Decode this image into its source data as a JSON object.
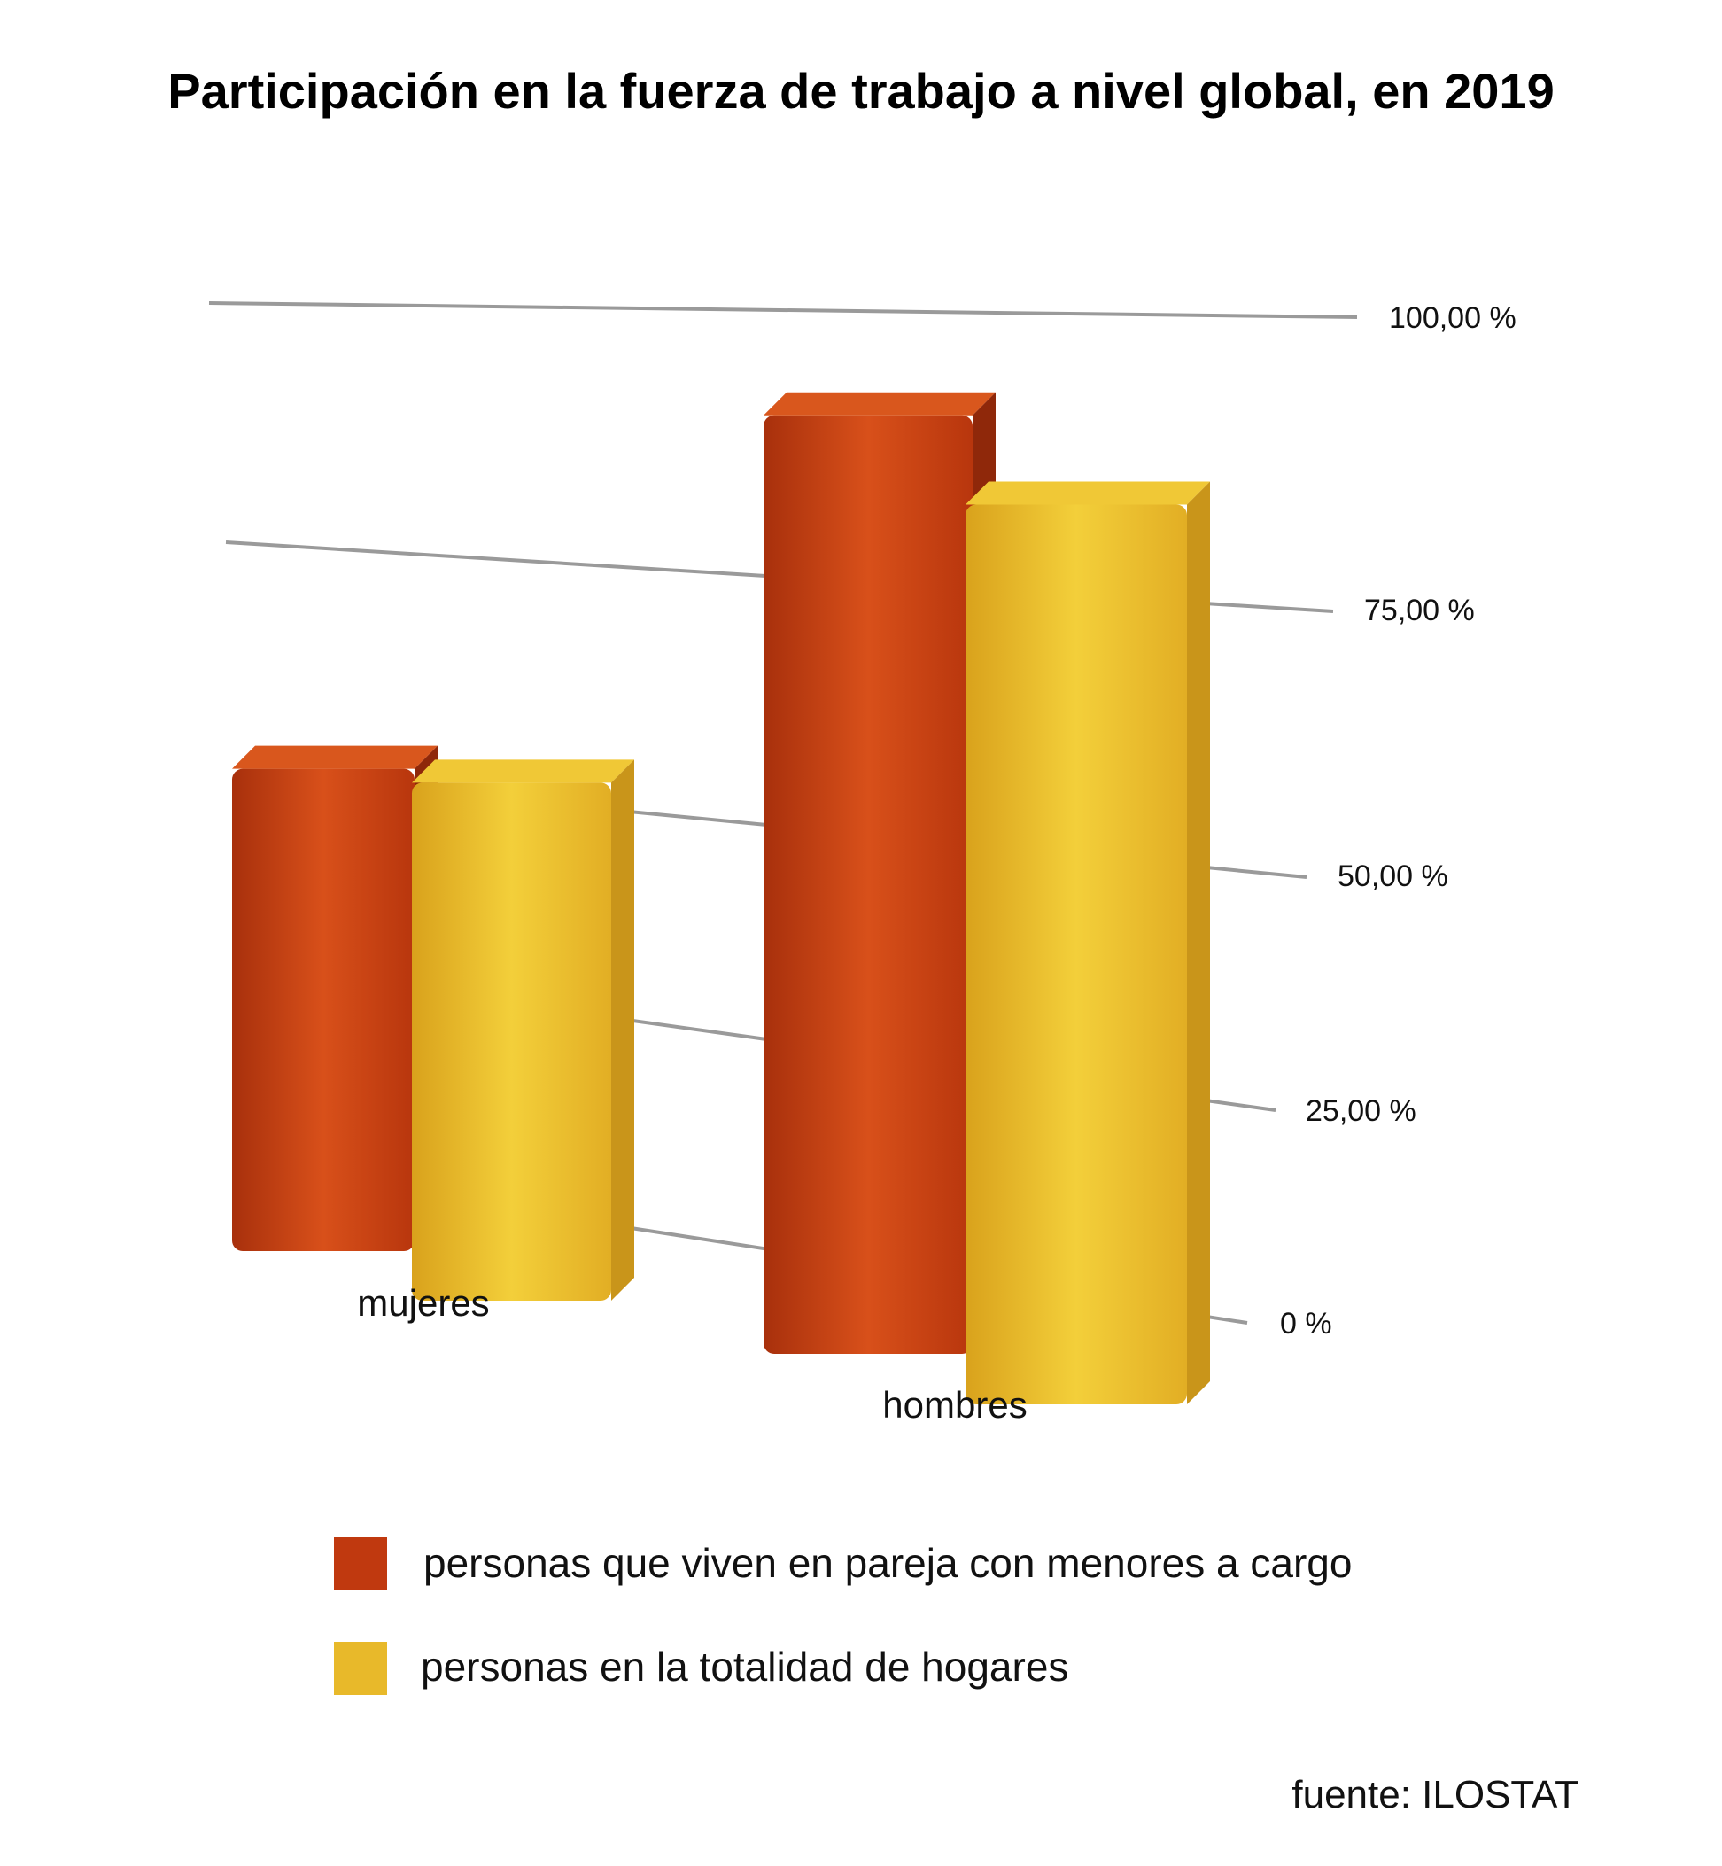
{
  "chart_data": {
    "type": "bar",
    "title": "Participación en la fuerza de trabajo a nivel global, en 2019",
    "categories": [
      "mujeres",
      "hombres"
    ],
    "series": [
      {
        "name": "personas que viven en pareja con menores a cargo",
        "values": [
          54,
          97
        ],
        "color": "#c0390f"
      },
      {
        "name": "personas en la totalidad de hogares",
        "values": [
          58,
          93
        ],
        "color": "#e8b92a"
      }
    ],
    "yticks": [
      "0 %",
      "25,00 %",
      "50,00 %",
      "75,00 %",
      "100,00 %"
    ],
    "ylim": [
      0,
      100
    ],
    "legend": "bottom",
    "grid": true,
    "source": "fuente: ILOSTAT"
  }
}
